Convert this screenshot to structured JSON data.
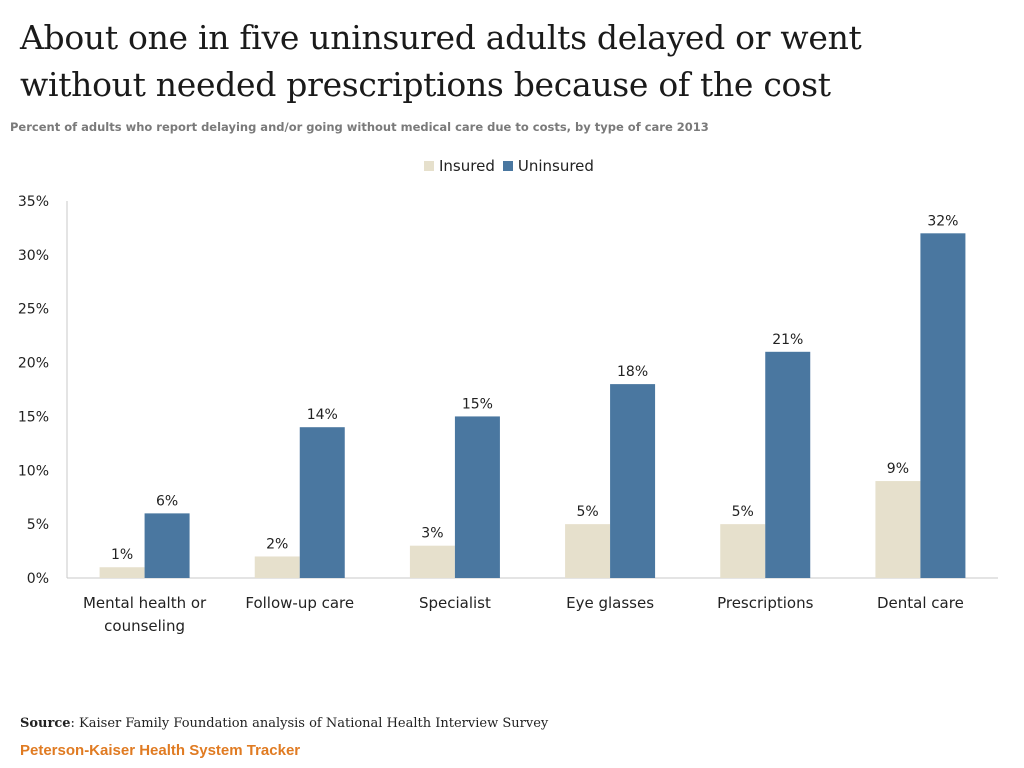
{
  "title_line1": "About one in five uninsured adults delayed or went",
  "title_line2": "without needed prescriptions because of the cost",
  "subtitle": "Percent of adults who report delaying and/or going without medical care due to costs, by type of care 2013",
  "source_label": "Source",
  "source_text": ": Kaiser Family Foundation analysis of National Health Interview Survey",
  "brand": "Peterson-Kaiser Health System Tracker",
  "colors": {
    "insured": "#e6e0cc",
    "uninsured": "#4a77a0",
    "brand": "#e07b22"
  },
  "chart_data": {
    "type": "bar",
    "title": "About one in five uninsured adults delayed or went without needed prescriptions because of the cost",
    "subtitle": "Percent of adults who report delaying and/or going without medical care due to costs, by type of care 2013",
    "xlabel": "",
    "ylabel": "",
    "categories": [
      [
        "Mental health or",
        "counseling"
      ],
      [
        "Follow-up care"
      ],
      [
        "Specialist"
      ],
      [
        "Eye glasses"
      ],
      [
        "Prescriptions"
      ],
      [
        "Dental care"
      ]
    ],
    "series": [
      {
        "name": "Insured",
        "values": [
          1,
          2,
          3,
          5,
          5,
          9
        ],
        "labels": [
          "1%",
          "2%",
          "3%",
          "5%",
          "5%",
          "9%"
        ]
      },
      {
        "name": "Uninsured",
        "values": [
          6,
          14,
          15,
          18,
          21,
          32
        ],
        "labels": [
          "6%",
          "14%",
          "15%",
          "18%",
          "21%",
          "32%"
        ]
      }
    ],
    "ylim": [
      0,
      35
    ],
    "yticks": [
      0,
      5,
      10,
      15,
      20,
      25,
      30,
      35
    ],
    "ytick_labels": [
      "0%",
      "5%",
      "10%",
      "15%",
      "20%",
      "25%",
      "30%",
      "35%"
    ],
    "legend": "top-center",
    "grid": false
  }
}
